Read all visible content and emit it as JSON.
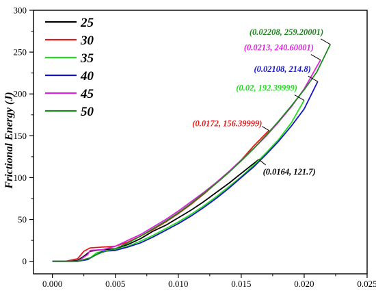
{
  "chart_data": {
    "type": "line",
    "title": "",
    "xlabel": "",
    "ylabel": "Frictional Energy (J)",
    "xlim": [
      -0.0015,
      0.025
    ],
    "ylim": [
      -15,
      300
    ],
    "x_ticks": [
      0.0,
      0.005,
      0.01,
      0.015,
      0.02,
      0.025
    ],
    "x_tick_labels": [
      "0.000",
      "0.005",
      "0.010",
      "0.015",
      "0.020",
      "0.025"
    ],
    "y_ticks": [
      0,
      50,
      100,
      150,
      200,
      250,
      300
    ],
    "y_tick_labels": [
      "0",
      "50",
      "100",
      "150",
      "200",
      "250",
      "300"
    ],
    "grid": false,
    "legend_position": "top-left",
    "series": [
      {
        "name": "25",
        "color": "#000000",
        "x": [
          0.0,
          0.001,
          0.002,
          0.0025,
          0.003,
          0.004,
          0.005,
          0.006,
          0.007,
          0.008,
          0.009,
          0.01,
          0.011,
          0.012,
          0.013,
          0.014,
          0.015,
          0.0164
        ],
        "y": [
          0,
          0,
          1,
          6,
          12,
          14,
          15,
          20,
          27,
          36,
          43,
          52,
          61,
          71,
          82,
          93,
          105,
          121.7
        ]
      },
      {
        "name": "30",
        "color": "#e31a1c",
        "x": [
          0.0,
          0.001,
          0.002,
          0.0025,
          0.003,
          0.004,
          0.005,
          0.006,
          0.007,
          0.008,
          0.009,
          0.01,
          0.011,
          0.012,
          0.013,
          0.014,
          0.015,
          0.016,
          0.0172
        ],
        "y": [
          0,
          0,
          3,
          12,
          16,
          17,
          18,
          23,
          30,
          38,
          47,
          57,
          68,
          80,
          93,
          106,
          121,
          138,
          156.39999
        ]
      },
      {
        "name": "35",
        "color": "#22dd22",
        "x": [
          0.0,
          0.001,
          0.002,
          0.003,
          0.0035,
          0.004,
          0.005,
          0.006,
          0.007,
          0.008,
          0.009,
          0.01,
          0.011,
          0.012,
          0.013,
          0.014,
          0.015,
          0.016,
          0.017,
          0.018,
          0.019,
          0.02
        ],
        "y": [
          0,
          0,
          0,
          4,
          10,
          12,
          14,
          18,
          24,
          31,
          39,
          47,
          56,
          66,
          77,
          89,
          101,
          115,
          130,
          146,
          166,
          192.39999
        ]
      },
      {
        "name": "40",
        "color": "#1515c8",
        "x": [
          0.0,
          0.001,
          0.002,
          0.0028,
          0.0035,
          0.004,
          0.005,
          0.006,
          0.007,
          0.008,
          0.009,
          0.01,
          0.011,
          0.012,
          0.013,
          0.014,
          0.015,
          0.016,
          0.017,
          0.018,
          0.019,
          0.02,
          0.02108
        ],
        "y": [
          0,
          0,
          0,
          2,
          8,
          12,
          13,
          17,
          22,
          29,
          37,
          45,
          54,
          64,
          75,
          87,
          100,
          113,
          128,
          144,
          162,
          182,
          214.8
        ]
      },
      {
        "name": "45",
        "color": "#e020e0",
        "x": [
          0.0,
          0.001,
          0.002,
          0.0028,
          0.003,
          0.004,
          0.005,
          0.006,
          0.007,
          0.008,
          0.009,
          0.01,
          0.011,
          0.012,
          0.013,
          0.014,
          0.015,
          0.016,
          0.017,
          0.018,
          0.019,
          0.02,
          0.0213
        ],
        "y": [
          0,
          0,
          0,
          8,
          13,
          14,
          18,
          25,
          32,
          41,
          50,
          60,
          71,
          82,
          94,
          107,
          121,
          135,
          150,
          167,
          185,
          206,
          240.60001
        ]
      },
      {
        "name": "50",
        "color": "#1a8a1a",
        "x": [
          0.0,
          0.001,
          0.002,
          0.003,
          0.0035,
          0.004,
          0.005,
          0.006,
          0.007,
          0.008,
          0.009,
          0.01,
          0.011,
          0.012,
          0.013,
          0.014,
          0.015,
          0.016,
          0.017,
          0.018,
          0.019,
          0.02,
          0.021,
          0.02208
        ],
        "y": [
          0,
          0,
          0,
          4,
          8,
          11,
          15,
          22,
          30,
          39,
          48,
          58,
          69,
          81,
          93,
          106,
          120,
          135,
          151,
          168,
          186,
          205,
          226,
          259.20001
        ]
      }
    ],
    "annotations": [
      {
        "text": "(0.0164, 121.7)",
        "color": "#000000",
        "x": 0.0164,
        "y": 121.7,
        "side": "below-right"
      },
      {
        "text": "(0.0172, 156.39999)",
        "color": "#e31a1c",
        "x": 0.0172,
        "y": 156.39999,
        "side": "left"
      },
      {
        "text": "(0.02, 192.39999)",
        "color": "#22dd22",
        "x": 0.02,
        "y": 192.39999,
        "side": "above-left"
      },
      {
        "text": "(0.02108, 214.8)",
        "color": "#1515c8",
        "x": 0.02108,
        "y": 214.8,
        "side": "above-left"
      },
      {
        "text": "(0.0213, 240.60001)",
        "color": "#e020e0",
        "x": 0.0213,
        "y": 240.60001,
        "side": "above-left"
      },
      {
        "text": "(0.02208, 259.20001)",
        "color": "#1a8a1a",
        "x": 0.02208,
        "y": 259.20001,
        "side": "above-left"
      }
    ]
  }
}
